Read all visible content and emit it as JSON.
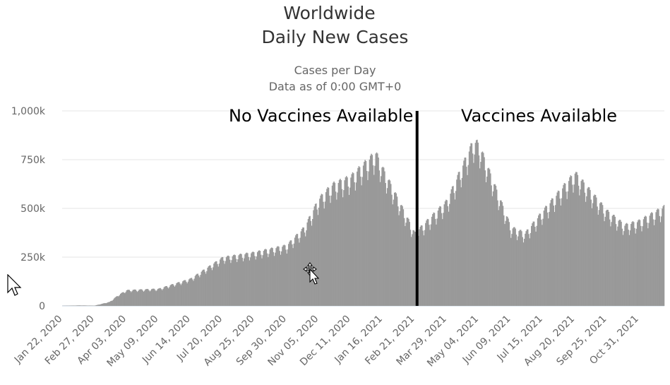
{
  "chart_data": {
    "type": "bar",
    "title": "Worldwide",
    "subtitle": "Daily New Cases",
    "caption_line1": "Cases per Day",
    "caption_line2": "Data as of 0:00 GMT+0",
    "ylim": [
      0,
      1000000
    ],
    "y_ticks": [
      {
        "value": 0,
        "label": "0"
      },
      {
        "value": 250000,
        "label": "250k"
      },
      {
        "value": 500000,
        "label": "500k"
      },
      {
        "value": 750000,
        "label": "750k"
      },
      {
        "value": 1000000,
        "label": "1,000k"
      }
    ],
    "x_range": [
      "2020-01-22",
      "2021-11-28"
    ],
    "x_ticks": [
      "Jan 22, 2020",
      "Feb 27, 2020",
      "Apr 03, 2020",
      "May 09, 2020",
      "Jun 14, 2020",
      "Jul 20, 2020",
      "Aug 25, 2020",
      "Sep 30, 2020",
      "Nov 05, 2020",
      "Dec 11, 2020",
      "Jan 16, 2021",
      "Feb 21, 2021",
      "Mar 29, 2021",
      "May 04, 2021",
      "Jun 09, 2021",
      "Jul 15, 2021",
      "Aug 20, 2021",
      "Sep 25, 2021",
      "Oct 31, 2021"
    ],
    "series": [
      {
        "color": "#999999",
        "weekly_cycle_amplitude": 0.22,
        "trend_points": [
          {
            "date": "2020-01-22",
            "value": 600
          },
          {
            "date": "2020-02-10",
            "value": 2500
          },
          {
            "date": "2020-02-27",
            "value": 1500
          },
          {
            "date": "2020-03-15",
            "value": 20000
          },
          {
            "date": "2020-03-25",
            "value": 55000
          },
          {
            "date": "2020-04-03",
            "value": 78000
          },
          {
            "date": "2020-05-09",
            "value": 85000
          },
          {
            "date": "2020-06-14",
            "value": 135000
          },
          {
            "date": "2020-07-20",
            "value": 240000
          },
          {
            "date": "2020-08-25",
            "value": 265000
          },
          {
            "date": "2020-09-30",
            "value": 300000
          },
          {
            "date": "2020-10-20",
            "value": 390000
          },
          {
            "date": "2020-11-05",
            "value": 530000
          },
          {
            "date": "2020-11-20",
            "value": 600000
          },
          {
            "date": "2020-12-11",
            "value": 640000
          },
          {
            "date": "2021-01-08",
            "value": 760000
          },
          {
            "date": "2021-01-16",
            "value": 680000
          },
          {
            "date": "2021-02-21",
            "value": 360000
          },
          {
            "date": "2021-03-29",
            "value": 520000
          },
          {
            "date": "2021-04-28",
            "value": 820000
          },
          {
            "date": "2021-05-04",
            "value": 800000
          },
          {
            "date": "2021-06-09",
            "value": 390000
          },
          {
            "date": "2021-06-25",
            "value": 360000
          },
          {
            "date": "2021-07-15",
            "value": 470000
          },
          {
            "date": "2021-08-20",
            "value": 660000
          },
          {
            "date": "2021-09-25",
            "value": 470000
          },
          {
            "date": "2021-10-15",
            "value": 400000
          },
          {
            "date": "2021-10-31",
            "value": 420000
          },
          {
            "date": "2021-11-28",
            "value": 490000
          }
        ]
      }
    ],
    "divider_date": "2021-02-24",
    "annotations": {
      "left": "No Vaccines Available",
      "right": "Vaccines Available"
    }
  }
}
